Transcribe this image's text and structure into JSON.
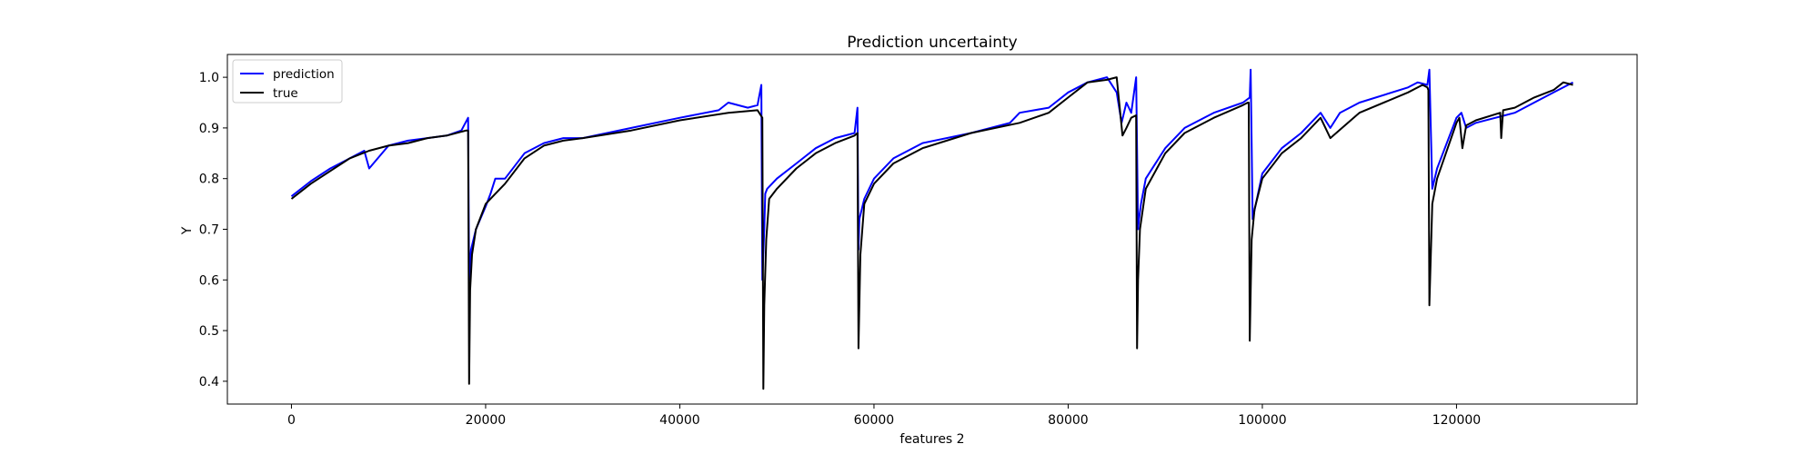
{
  "chart_data": {
    "type": "line",
    "title": "Prediction uncertainty",
    "xlabel": "features 2",
    "ylabel": "Y",
    "xlim": [
      -6600,
      138600
    ],
    "ylim": [
      0.355,
      1.045
    ],
    "xticks": [
      0,
      20000,
      40000,
      60000,
      80000,
      100000,
      120000
    ],
    "yticks": [
      0.4,
      0.5,
      0.6,
      0.7,
      0.8,
      0.9,
      1.0
    ],
    "grid": false,
    "legend_position": "top-left",
    "series": [
      {
        "name": "prediction",
        "color": "#0000ff",
        "x": [
          0,
          2000,
          4000,
          6000,
          7500,
          8000,
          10000,
          12000,
          14000,
          16000,
          17500,
          18200,
          18300,
          18500,
          19000,
          20000,
          20500,
          21000,
          22000,
          24000,
          26000,
          28000,
          30000,
          35000,
          40000,
          44000,
          45000,
          47000,
          48000,
          48400,
          48500,
          48700,
          48800,
          49000,
          50000,
          52000,
          54000,
          56000,
          58000,
          58300,
          58400,
          58500,
          59000,
          60000,
          62000,
          65000,
          70000,
          74000,
          75000,
          78000,
          80000,
          82000,
          84000,
          85000,
          85500,
          86000,
          86500,
          87000,
          87200,
          87300,
          87500,
          88000,
          90000,
          92000,
          95000,
          98000,
          98700,
          98800,
          99000,
          100000,
          102000,
          104000,
          105000,
          106000,
          107000,
          108000,
          110000,
          115000,
          116000,
          117000,
          117200,
          117500,
          118000,
          120000,
          120500,
          121000,
          122000,
          125000,
          126000,
          128000,
          130000,
          132000
        ],
        "values": [
          0.765,
          0.795,
          0.82,
          0.84,
          0.855,
          0.82,
          0.865,
          0.875,
          0.88,
          0.885,
          0.895,
          0.92,
          0.6,
          0.66,
          0.7,
          0.745,
          0.77,
          0.8,
          0.8,
          0.85,
          0.87,
          0.88,
          0.88,
          0.9,
          0.92,
          0.935,
          0.95,
          0.94,
          0.945,
          0.985,
          0.6,
          0.7,
          0.77,
          0.78,
          0.8,
          0.83,
          0.86,
          0.88,
          0.89,
          0.94,
          0.66,
          0.72,
          0.76,
          0.8,
          0.84,
          0.87,
          0.89,
          0.91,
          0.93,
          0.94,
          0.97,
          0.99,
          1.0,
          0.97,
          0.91,
          0.95,
          0.93,
          1.0,
          0.7,
          0.72,
          0.75,
          0.8,
          0.86,
          0.9,
          0.93,
          0.95,
          0.96,
          1.015,
          0.72,
          0.81,
          0.86,
          0.89,
          0.91,
          0.93,
          0.9,
          0.93,
          0.95,
          0.98,
          0.99,
          0.985,
          1.015,
          0.78,
          0.82,
          0.92,
          0.93,
          0.9,
          0.91,
          0.925,
          0.93,
          0.95,
          0.97,
          0.99
        ]
      },
      {
        "name": "true",
        "color": "#000000",
        "x": [
          0,
          2000,
          4000,
          6000,
          8000,
          10000,
          12000,
          14000,
          16000,
          18000,
          18200,
          18300,
          18400,
          18600,
          19000,
          20000,
          21000,
          22000,
          24000,
          26000,
          28000,
          30000,
          35000,
          40000,
          45000,
          48000,
          48500,
          48600,
          48700,
          48900,
          49200,
          50000,
          52000,
          54000,
          56000,
          58000,
          58300,
          58400,
          58600,
          59000,
          60000,
          62000,
          65000,
          70000,
          75000,
          78000,
          80000,
          82000,
          84000,
          85000,
          85600,
          86000,
          86500,
          87000,
          87100,
          87200,
          87400,
          88000,
          90000,
          92000,
          95000,
          98000,
          98500,
          98600,
          98700,
          98900,
          99200,
          100000,
          102000,
          104000,
          105000,
          106000,
          107000,
          110000,
          115000,
          116500,
          117000,
          117100,
          117200,
          117500,
          118000,
          120000,
          120300,
          120600,
          121000,
          122000,
          124500,
          124600,
          124800,
          126000,
          128000,
          130000,
          131000,
          132000
        ],
        "values": [
          0.76,
          0.79,
          0.815,
          0.84,
          0.855,
          0.865,
          0.87,
          0.88,
          0.885,
          0.895,
          0.895,
          0.395,
          0.58,
          0.65,
          0.7,
          0.75,
          0.77,
          0.79,
          0.84,
          0.865,
          0.875,
          0.88,
          0.895,
          0.915,
          0.93,
          0.935,
          0.92,
          0.385,
          0.55,
          0.68,
          0.76,
          0.78,
          0.82,
          0.85,
          0.87,
          0.885,
          0.89,
          0.465,
          0.65,
          0.75,
          0.79,
          0.83,
          0.86,
          0.89,
          0.91,
          0.93,
          0.96,
          0.99,
          0.995,
          1.0,
          0.885,
          0.9,
          0.92,
          0.925,
          0.465,
          0.6,
          0.7,
          0.78,
          0.85,
          0.89,
          0.92,
          0.945,
          0.95,
          0.95,
          0.48,
          0.68,
          0.74,
          0.8,
          0.85,
          0.88,
          0.9,
          0.92,
          0.88,
          0.93,
          0.97,
          0.985,
          0.98,
          0.975,
          0.55,
          0.75,
          0.8,
          0.91,
          0.92,
          0.86,
          0.905,
          0.915,
          0.93,
          0.88,
          0.935,
          0.94,
          0.96,
          0.975,
          0.99,
          0.985
        ]
      }
    ]
  }
}
